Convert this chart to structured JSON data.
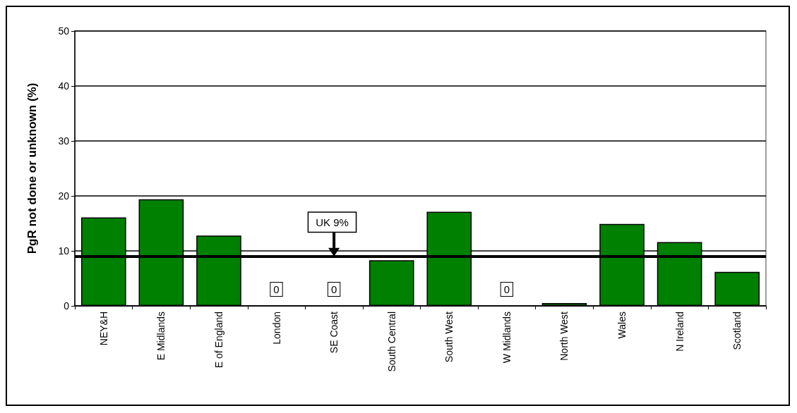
{
  "chart_data": {
    "type": "bar",
    "ylabel": "PgR not done or unknown (%)",
    "categories": [
      "NEY&H",
      "E Midlands",
      "E of England",
      "London",
      "SE Coast",
      "South Central",
      "South West",
      "W Midlands",
      "North West",
      "Wales",
      "N Ireland",
      "Scotland"
    ],
    "values": [
      16.1,
      19.4,
      12.8,
      0,
      0,
      8.3,
      17.1,
      0,
      0.5,
      14.9,
      11.6,
      6.2
    ],
    "value_labels": [
      null,
      null,
      null,
      "0",
      "0",
      null,
      null,
      "0",
      null,
      null,
      null,
      null
    ],
    "color": "#008000",
    "ylim": [
      0,
      50
    ],
    "yticks": [
      0,
      10,
      20,
      30,
      40,
      50
    ],
    "grid": "y",
    "ref_lines": [
      {
        "axis": "y",
        "value": 9,
        "label": "UK 9%",
        "color": "#000000"
      }
    ]
  }
}
